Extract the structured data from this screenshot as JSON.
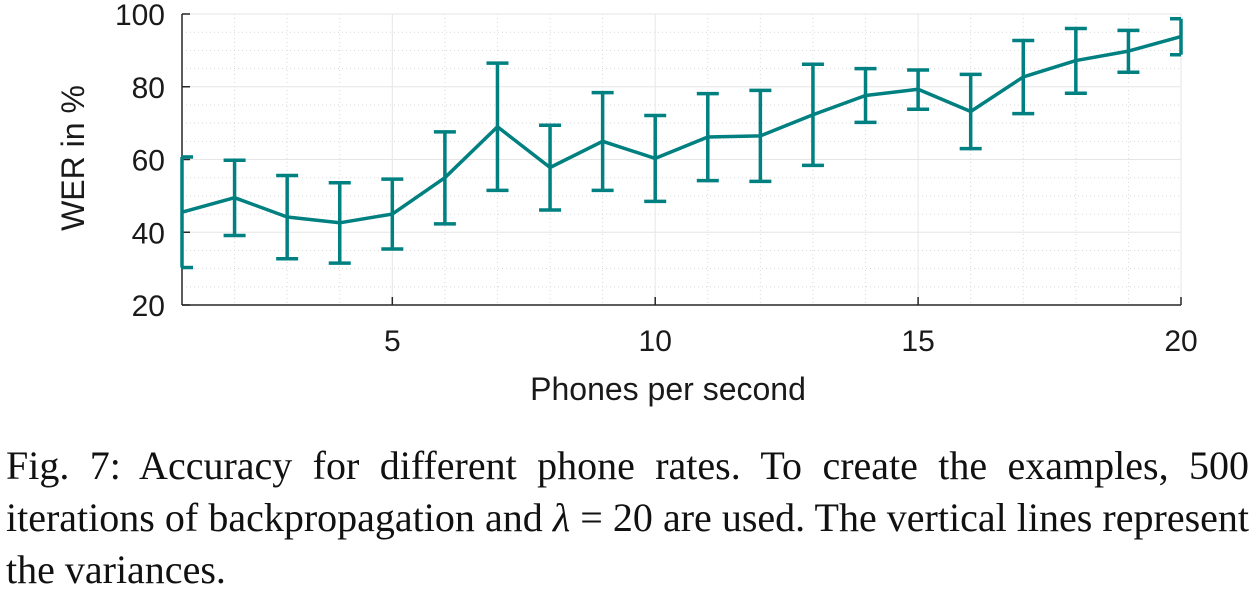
{
  "chart_data": {
    "type": "line",
    "xlabel": "Phones per second",
    "ylabel": "WER in %",
    "xlim": [
      1,
      20
    ],
    "ylim": [
      20,
      100
    ],
    "xticks": [
      5,
      10,
      15,
      20
    ],
    "yticks": [
      20,
      40,
      60,
      80,
      100
    ],
    "grid": true,
    "color": "#008080",
    "series": [
      {
        "x": [
          1,
          2,
          3,
          4,
          5,
          6,
          7,
          8,
          9,
          10,
          11,
          12,
          13,
          14,
          15,
          16,
          17,
          18,
          19,
          20
        ],
        "y": [
          45.5,
          49.5,
          44.2,
          42.6,
          45.0,
          55.0,
          69.0,
          57.8,
          65.0,
          60.3,
          66.2,
          66.5,
          72.3,
          77.6,
          79.3,
          73.2,
          82.7,
          87.2,
          89.8,
          93.8
        ],
        "err_low": [
          30.3,
          39.1,
          32.7,
          31.5,
          35.4,
          42.3,
          51.5,
          46.1,
          51.5,
          48.5,
          54.2,
          54.0,
          58.4,
          70.2,
          73.8,
          63.0,
          72.6,
          78.2,
          84.0,
          88.8
        ],
        "err_high": [
          60.7,
          59.8,
          55.6,
          53.6,
          54.6,
          67.6,
          86.5,
          69.4,
          78.4,
          72.1,
          78.1,
          79.0,
          86.2,
          85.0,
          84.6,
          83.4,
          92.7,
          96.0,
          95.5,
          98.7
        ]
      }
    ]
  },
  "caption": {
    "prefix": "Fig. 7: Accuracy for different phone rates. To create the examples, ",
    "iterations": "500",
    "middle": " iterations of backpropagation and ",
    "lambda_symbol": "λ",
    "lambda_eq": " = ",
    "lambda_value": "20",
    "suffix": " are used. The vertical lines represent the variances."
  }
}
